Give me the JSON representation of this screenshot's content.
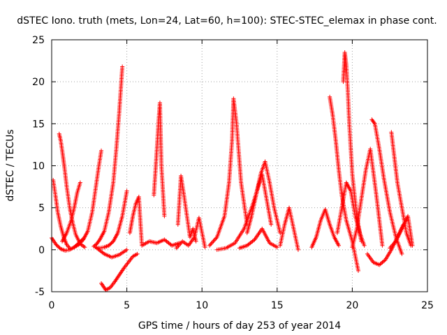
{
  "chart_data": {
    "type": "scatter",
    "title": "dSTEC Iono. truth (mets, Lon=24, Lat=60, h=100): STEC-STEC_elemax in phase cont.",
    "xlabel": "GPS time / hours of day 253 of year 2014",
    "ylabel": "dSTEC  / TECUs",
    "xlim": [
      0,
      25
    ],
    "ylim": [
      -5,
      25
    ],
    "xticks": [
      0,
      5,
      10,
      15,
      20,
      25
    ],
    "yticks": [
      -5,
      0,
      5,
      10,
      15,
      20,
      25
    ],
    "grid": true,
    "marker": "plus",
    "color": "#ff0000",
    "arcs": [
      {
        "x": [
          0.0,
          0.3,
          0.6,
          0.9,
          1.2,
          1.5,
          1.8,
          2.1
        ],
        "y": [
          1.4,
          0.6,
          0.1,
          -0.1,
          0.0,
          0.3,
          0.8,
          1.3
        ]
      },
      {
        "x": [
          0.1,
          0.25,
          0.4,
          0.6,
          0.8,
          1.0,
          1.2
        ],
        "y": [
          8.3,
          6.5,
          4.5,
          2.8,
          1.5,
          0.6,
          0.2
        ]
      },
      {
        "x": [
          0.5,
          0.6,
          0.7,
          0.85,
          1.0,
          1.2,
          1.4,
          1.6,
          1.9,
          2.2
        ],
        "y": [
          13.8,
          13.0,
          11.8,
          9.8,
          7.5,
          5.0,
          3.2,
          1.8,
          0.7,
          0.3
        ]
      },
      {
        "x": [
          0.7,
          1.0,
          1.3,
          1.5,
          1.7,
          1.9
        ],
        "y": [
          1.0,
          2.0,
          3.5,
          5.0,
          6.8,
          8.0
        ]
      },
      {
        "x": [
          1.5,
          1.8,
          2.1,
          2.4,
          2.7,
          2.9,
          3.1,
          3.3
        ],
        "y": [
          0.3,
          0.6,
          1.2,
          2.2,
          4.5,
          7.0,
          9.5,
          11.8
        ]
      },
      {
        "x": [
          2.8,
          3.0,
          3.2,
          3.5,
          3.8,
          4.1,
          4.3,
          4.5,
          4.7
        ],
        "y": [
          0.4,
          0.7,
          1.2,
          2.2,
          4.5,
          8.0,
          12.0,
          16.5,
          21.8
        ]
      },
      {
        "x": [
          2.9,
          3.2,
          3.5,
          3.8,
          4.1,
          4.4,
          4.7,
          5.0
        ],
        "y": [
          0.3,
          0.2,
          0.3,
          0.5,
          1.0,
          2.0,
          4.0,
          7.0
        ]
      },
      {
        "x": [
          3.0,
          3.5,
          4.0,
          4.5,
          5.0
        ],
        "y": [
          0.2,
          -0.5,
          -0.9,
          -0.6,
          0.0
        ]
      },
      {
        "x": [
          3.3,
          3.6,
          3.9,
          4.2,
          4.5,
          4.8,
          5.1,
          5.4,
          5.7
        ],
        "y": [
          -4.0,
          -4.8,
          -4.5,
          -3.8,
          -3.0,
          -2.2,
          -1.5,
          -0.8,
          -0.5
        ]
      },
      {
        "x": [
          5.2,
          5.4,
          5.6,
          5.8,
          6.0,
          6.5,
          7.0,
          7.5,
          8.0,
          8.5
        ],
        "y": [
          2.0,
          4.0,
          5.5,
          6.3,
          0.5,
          1.0,
          0.8,
          1.2,
          0.5,
          0.8
        ]
      },
      {
        "x": [
          6.8,
          7.0,
          7.1,
          7.2,
          7.3,
          7.5
        ],
        "y": [
          6.5,
          12.0,
          15.0,
          17.5,
          10.0,
          4.0
        ]
      },
      {
        "x": [
          8.4,
          8.6,
          8.8,
          9.0,
          9.2,
          9.4,
          9.6
        ],
        "y": [
          3.0,
          8.8,
          6.5,
          4.0,
          1.5,
          2.5,
          1.0
        ]
      },
      {
        "x": [
          8.3,
          8.7,
          9.1,
          9.5,
          9.8,
          10.2
        ],
        "y": [
          0.2,
          1.0,
          0.5,
          1.5,
          3.8,
          0.3
        ]
      },
      {
        "x": [
          10.5,
          11.0,
          11.5,
          11.8,
          12.0,
          12.1,
          12.3,
          12.6,
          13.0
        ],
        "y": [
          0.5,
          1.5,
          4.0,
          8.0,
          13.0,
          18.0,
          15.0,
          8.0,
          3.0
        ]
      },
      {
        "x": [
          11.0,
          11.6,
          12.2,
          12.8,
          13.4,
          14.0,
          14.6
        ],
        "y": [
          0.0,
          0.2,
          0.8,
          2.5,
          5.5,
          9.0,
          3.0
        ]
      },
      {
        "x": [
          12.5,
          13.0,
          13.5,
          14.0,
          14.5,
          15.0
        ],
        "y": [
          0.2,
          0.5,
          1.2,
          2.5,
          0.8,
          0.3
        ]
      },
      {
        "x": [
          13.0,
          13.3,
          13.6,
          13.9,
          14.2,
          14.5,
          14.8,
          15.2
        ],
        "y": [
          2.0,
          4.0,
          6.5,
          9.0,
          10.5,
          8.0,
          5.0,
          2.0
        ]
      },
      {
        "x": [
          15.2,
          15.5,
          15.8,
          16.1,
          16.4
        ],
        "y": [
          0.5,
          3.0,
          5.0,
          2.5,
          0.0
        ]
      },
      {
        "x": [
          17.3,
          17.6,
          17.9,
          18.2,
          18.5,
          18.8,
          19.1
        ],
        "y": [
          0.3,
          1.5,
          3.5,
          4.8,
          3.0,
          1.5,
          0.5
        ]
      },
      {
        "x": [
          18.5,
          18.7,
          18.9,
          19.1,
          19.3,
          19.6,
          20.0,
          20.4
        ],
        "y": [
          18.2,
          16.0,
          13.0,
          9.5,
          6.5,
          3.5,
          1.0,
          -2.5
        ]
      },
      {
        "x": [
          19.4,
          19.5,
          19.6,
          19.7,
          19.8,
          20.0,
          20.3,
          20.6
        ],
        "y": [
          20.0,
          23.5,
          22.0,
          19.0,
          15.0,
          9.0,
          4.0,
          1.0
        ]
      },
      {
        "x": [
          19.0,
          19.3,
          19.6,
          19.9,
          20.2,
          20.5,
          20.8
        ],
        "y": [
          2.0,
          5.0,
          8.0,
          7.0,
          4.0,
          2.0,
          0.5
        ]
      },
      {
        "x": [
          20.0,
          20.3,
          20.6,
          20.9,
          21.2,
          21.6,
          22.0
        ],
        "y": [
          0.3,
          2.5,
          6.0,
          9.5,
          12.0,
          6.5,
          0.5
        ]
      },
      {
        "x": [
          21.3,
          21.5,
          21.8,
          22.1,
          22.5,
          22.9,
          23.3
        ],
        "y": [
          15.5,
          15.0,
          12.0,
          8.5,
          4.5,
          1.5,
          -0.5
        ]
      },
      {
        "x": [
          21.0,
          21.4,
          21.8,
          22.2,
          22.6,
          23.0,
          23.4
        ],
        "y": [
          -0.5,
          -1.5,
          -1.8,
          -1.2,
          0.0,
          1.5,
          3.0
        ]
      },
      {
        "x": [
          22.6,
          22.8,
          23.0,
          23.3,
          23.6,
          23.9
        ],
        "y": [
          14.0,
          11.0,
          8.0,
          5.0,
          2.0,
          0.5
        ]
      },
      {
        "x": [
          22.5,
          22.9,
          23.3,
          23.7,
          24.0
        ],
        "y": [
          0.2,
          1.0,
          2.5,
          4.0,
          0.5
        ]
      }
    ]
  }
}
